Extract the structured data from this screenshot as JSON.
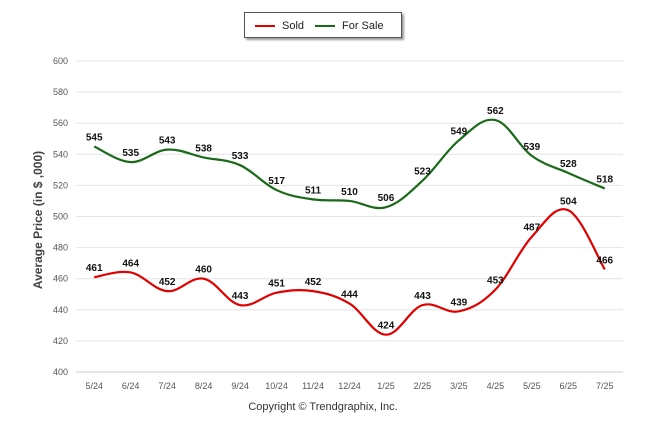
{
  "chart_data": {
    "type": "line",
    "categories": [
      "5/24",
      "6/24",
      "7/24",
      "8/24",
      "9/24",
      "10/24",
      "11/24",
      "12/24",
      "1/25",
      "2/25",
      "3/25",
      "4/25",
      "5/25",
      "6/25",
      "7/25"
    ],
    "series": [
      {
        "name": "Sold",
        "color": "#e00000",
        "values": [
          461,
          464,
          452,
          460,
          443,
          451,
          452,
          444,
          424,
          443,
          439,
          453,
          487,
          504,
          466
        ]
      },
      {
        "name": "For Sale",
        "color": "#1a6a1a",
        "values": [
          545,
          535,
          543,
          538,
          533,
          517,
          511,
          510,
          506,
          523,
          549,
          562,
          539,
          528,
          518
        ]
      }
    ],
    "ylabel": "Average Price (in $ ,000)",
    "xlabel": "",
    "ylim": [
      400,
      600
    ],
    "yticks": [
      400,
      420,
      440,
      460,
      480,
      500,
      520,
      540,
      560,
      580,
      600
    ],
    "grid": true,
    "legend": "top-center"
  },
  "footer": {
    "copyright": "Copyright © Trendgraphix, Inc."
  }
}
